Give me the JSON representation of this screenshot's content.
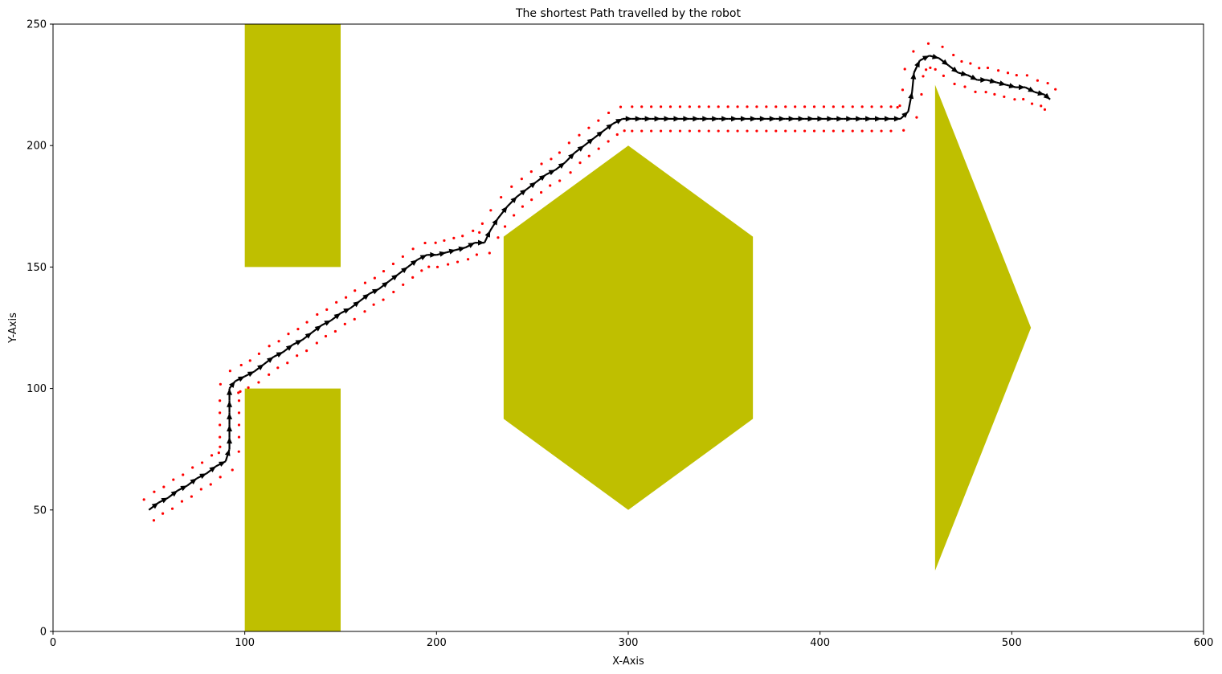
{
  "chart_data": {
    "type": "scatter",
    "title": "The shortest Path travelled by the robot",
    "xlabel": "X-Axis",
    "ylabel": "Y-Axis",
    "xlim": [
      0,
      600
    ],
    "ylim": [
      0,
      250
    ],
    "xticks": [
      0,
      100,
      200,
      300,
      400,
      500,
      600
    ],
    "yticks": [
      0,
      50,
      100,
      150,
      200,
      250
    ],
    "grid": false,
    "colors": {
      "obstacle": "#bfbf00",
      "path_arrow": "#000000",
      "explored": "#ff0000"
    },
    "obstacles": [
      {
        "shape": "rectangle",
        "points": [
          [
            100,
            150
          ],
          [
            150,
            150
          ],
          [
            150,
            250
          ],
          [
            100,
            250
          ]
        ]
      },
      {
        "shape": "rectangle",
        "points": [
          [
            100,
            0
          ],
          [
            150,
            0
          ],
          [
            150,
            100
          ],
          [
            100,
            100
          ]
        ]
      },
      {
        "shape": "hexagon",
        "points": [
          [
            300,
            200
          ],
          [
            365,
            162.5
          ],
          [
            365,
            87.5
          ],
          [
            300,
            50
          ],
          [
            235,
            87.5
          ],
          [
            235,
            162.5
          ]
        ]
      },
      {
        "shape": "triangle",
        "points": [
          [
            460,
            225
          ],
          [
            510,
            125
          ],
          [
            460,
            25
          ]
        ]
      }
    ],
    "path": [
      [
        50,
        50
      ],
      [
        55,
        53
      ],
      [
        60,
        55
      ],
      [
        65,
        58
      ],
      [
        70,
        60
      ],
      [
        75,
        63
      ],
      [
        80,
        65
      ],
      [
        85,
        68
      ],
      [
        90,
        70
      ],
      [
        92,
        75
      ],
      [
        92,
        80
      ],
      [
        92,
        85
      ],
      [
        92,
        90
      ],
      [
        92,
        95
      ],
      [
        92,
        100
      ],
      [
        95,
        103
      ],
      [
        100,
        105
      ],
      [
        105,
        107
      ],
      [
        110,
        110
      ],
      [
        115,
        113
      ],
      [
        120,
        115
      ],
      [
        125,
        118
      ],
      [
        130,
        120
      ],
      [
        135,
        123
      ],
      [
        140,
        126
      ],
      [
        145,
        128
      ],
      [
        150,
        131
      ],
      [
        155,
        133
      ],
      [
        160,
        136
      ],
      [
        165,
        139
      ],
      [
        170,
        141
      ],
      [
        175,
        144
      ],
      [
        180,
        147
      ],
      [
        185,
        150
      ],
      [
        190,
        153
      ],
      [
        195,
        155
      ],
      [
        200,
        155
      ],
      [
        205,
        156
      ],
      [
        210,
        157
      ],
      [
        215,
        158
      ],
      [
        220,
        160
      ],
      [
        225,
        160
      ],
      [
        228,
        165
      ],
      [
        232,
        170
      ],
      [
        237,
        175
      ],
      [
        242,
        179
      ],
      [
        247,
        182
      ],
      [
        252,
        185
      ],
      [
        257,
        188
      ],
      [
        262,
        190
      ],
      [
        267,
        193
      ],
      [
        272,
        197
      ],
      [
        277,
        200
      ],
      [
        282,
        203
      ],
      [
        287,
        206
      ],
      [
        292,
        209
      ],
      [
        297,
        211
      ],
      [
        302,
        211
      ],
      [
        307,
        211
      ],
      [
        312,
        211
      ],
      [
        317,
        211
      ],
      [
        322,
        211
      ],
      [
        327,
        211
      ],
      [
        332,
        211
      ],
      [
        337,
        211
      ],
      [
        342,
        211
      ],
      [
        347,
        211
      ],
      [
        352,
        211
      ],
      [
        357,
        211
      ],
      [
        362,
        211
      ],
      [
        367,
        211
      ],
      [
        372,
        211
      ],
      [
        377,
        211
      ],
      [
        382,
        211
      ],
      [
        387,
        211
      ],
      [
        392,
        211
      ],
      [
        397,
        211
      ],
      [
        402,
        211
      ],
      [
        407,
        211
      ],
      [
        412,
        211
      ],
      [
        417,
        211
      ],
      [
        422,
        211
      ],
      [
        427,
        211
      ],
      [
        432,
        211
      ],
      [
        437,
        211
      ],
      [
        442,
        211
      ],
      [
        446,
        214
      ],
      [
        448,
        222
      ],
      [
        449,
        230
      ],
      [
        452,
        235
      ],
      [
        457,
        237
      ],
      [
        462,
        236
      ],
      [
        467,
        233
      ],
      [
        472,
        230
      ],
      [
        477,
        229
      ],
      [
        482,
        227
      ],
      [
        487,
        227
      ],
      [
        492,
        226
      ],
      [
        497,
        225
      ],
      [
        502,
        224
      ],
      [
        507,
        224
      ],
      [
        512,
        222
      ],
      [
        517,
        221
      ],
      [
        520,
        219
      ]
    ],
    "explored_offset": 5
  }
}
